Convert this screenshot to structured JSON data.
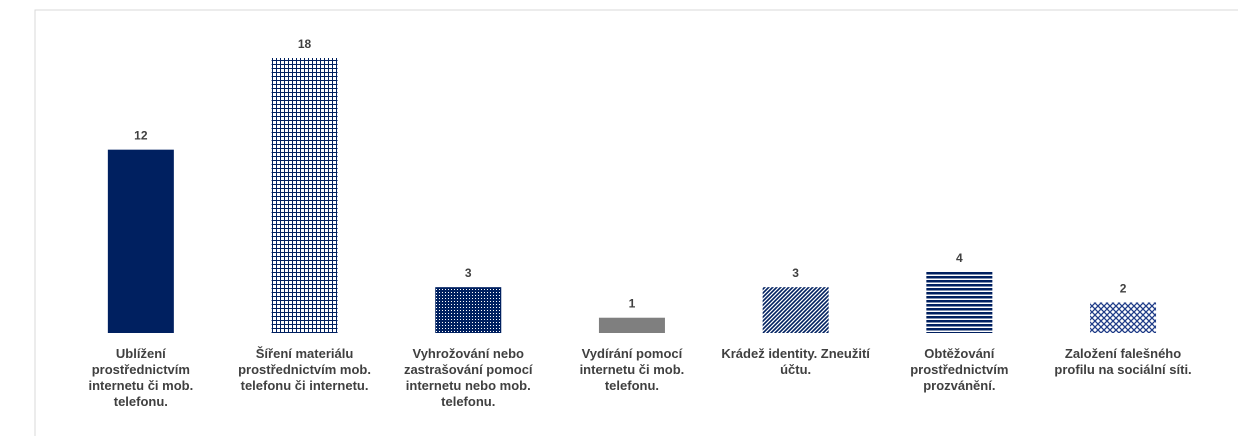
{
  "chart_data": {
    "type": "bar",
    "categories": [
      "Ublížení prostřednictvím internetu či mob. telefonu.",
      "Šíření materiálu prostřednictvím mob. telefonu či internetu.",
      "Vyhrožování nebo zastrašování pomocí internetu nebo mob. telefonu.",
      "Vydírání pomocí internetu či mob. telefonu.",
      "Krádež identity. Zneužití účtu.",
      "Obtěžování prostřednictvím prozvánění.",
      "Založení falešného profilu na sociální síti."
    ],
    "values": [
      12,
      18,
      3,
      1,
      3,
      4,
      2
    ],
    "colors": [
      "#002060",
      "#002060",
      "#002060",
      "#7f7f7f",
      "#002060",
      "#002060",
      "#1f3c88"
    ],
    "patterns": [
      "solid",
      "grid",
      "dots",
      "solid",
      "diagonal",
      "horizontal",
      "weave"
    ]
  }
}
